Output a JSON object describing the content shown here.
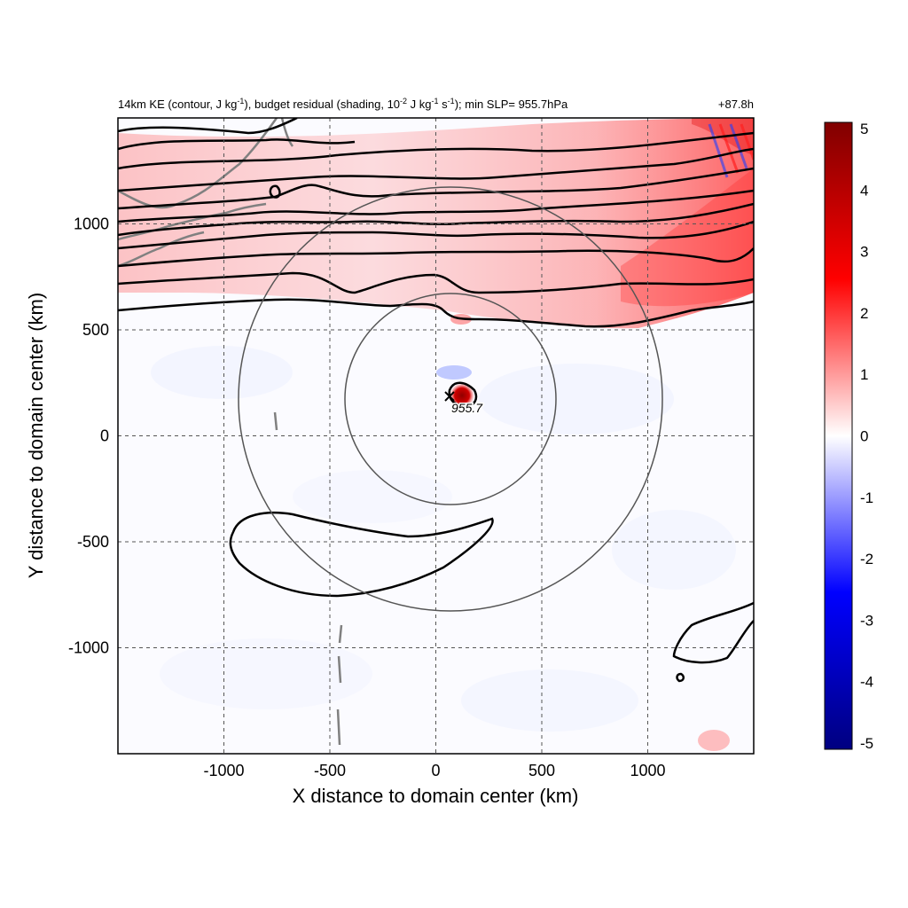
{
  "chart_data": {
    "type": "heatmap",
    "title_main": "14km KE (contour, J kg⁻¹), budget residual (shading, 10⁻² J kg⁻¹ s⁻¹); min SLP= 955.7hPa",
    "title_right": "+87.8h",
    "xlabel": "X distance to domain center (km)",
    "ylabel": "Y distance to domain center (km)",
    "xlim": [
      -1500,
      1500
    ],
    "ylim": [
      -1500,
      1500
    ],
    "xticks": [
      -1000,
      -500,
      0,
      500,
      1000
    ],
    "yticks": [
      -1000,
      -500,
      0,
      500,
      1000
    ],
    "grid": true,
    "colorbar": {
      "min": -5,
      "max": 5,
      "ticks": [
        5,
        4,
        3,
        2,
        1,
        0,
        -1,
        -2,
        -3,
        -4,
        -5
      ],
      "colors": [
        "#000080",
        "#0000ff",
        "#ffffff",
        "#ff0000",
        "#800000"
      ]
    },
    "storm_center": {
      "x": 70,
      "y": 175,
      "label": "955.7"
    },
    "range_rings_km": [
      500,
      1000
    ],
    "shading_features": [
      {
        "name": "jet-residual-band",
        "sign": "positive",
        "x_range": [
          -1500,
          1500
        ],
        "y_range": [
          500,
          1500
        ]
      },
      {
        "name": "core-residual",
        "sign": "positive",
        "x": 120,
        "y": 190,
        "value": 5
      },
      {
        "name": "core-residual-negative",
        "sign": "negative",
        "x": 70,
        "y": 240,
        "value": -2
      }
    ],
    "colors": {
      "contour": "#000000",
      "ring": "#555555",
      "coast": "#808080",
      "grid": "#555555"
    }
  }
}
